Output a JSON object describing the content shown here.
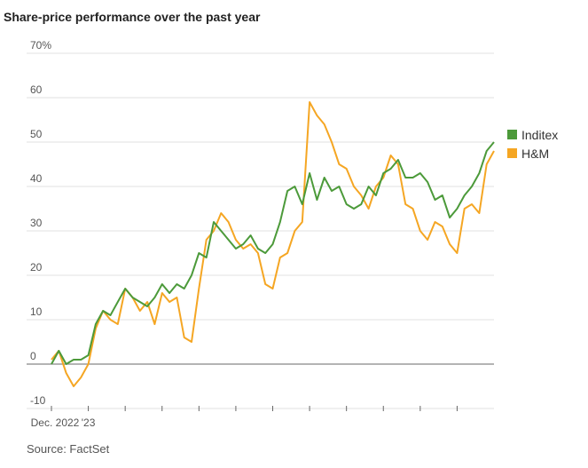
{
  "chart_data": {
    "type": "line",
    "title": "Share-price performance over the past year",
    "source": "Source: FactSet",
    "x": [
      0,
      0.2,
      0.4,
      0.6,
      0.8,
      1,
      1.2,
      1.4,
      1.6,
      1.8,
      2,
      2.2,
      2.4,
      2.6,
      2.8,
      3,
      3.2,
      3.4,
      3.6,
      3.8,
      4,
      4.2,
      4.4,
      4.6,
      4.8,
      5,
      5.2,
      5.4,
      5.6,
      5.8,
      6,
      6.2,
      6.4,
      6.6,
      6.8,
      7,
      7.2,
      7.4,
      7.6,
      7.8,
      8,
      8.2,
      8.4,
      8.6,
      8.8,
      9,
      9.2,
      9.4,
      9.6,
      9.8,
      10,
      10.2,
      10.4,
      10.6,
      10.8,
      11,
      11.2,
      11.4,
      11.6,
      11.8,
      12
    ],
    "series": [
      {
        "name": "Inditex",
        "color": "#4c9a3a",
        "values": [
          0,
          3,
          0,
          1,
          1,
          2,
          9,
          12,
          11,
          14,
          17,
          15,
          14,
          13,
          15,
          18,
          16,
          18,
          17,
          20,
          25,
          24,
          32,
          30,
          28,
          26,
          27,
          29,
          26,
          25,
          27,
          32,
          39,
          40,
          36,
          43,
          37,
          42,
          39,
          40,
          36,
          35,
          36,
          40,
          38,
          43,
          44,
          46,
          42,
          42,
          43,
          41,
          37,
          38,
          33,
          35,
          38,
          40,
          43,
          48,
          50
        ]
      },
      {
        "name": "H&M",
        "color": "#f5a623",
        "values": [
          1,
          3,
          -2,
          -5,
          -3,
          0,
          8,
          12,
          10,
          9,
          17,
          15,
          12,
          14,
          9,
          16,
          14,
          15,
          6,
          5,
          17,
          28,
          30,
          34,
          32,
          28,
          26,
          27,
          25,
          18,
          17,
          24,
          25,
          30,
          32,
          59,
          56,
          54,
          50,
          45,
          44,
          40,
          38,
          35,
          40,
          42,
          47,
          45,
          36,
          35,
          30,
          28,
          32,
          31,
          27,
          25,
          35,
          36,
          34,
          45,
          48
        ]
      }
    ],
    "xlim": [
      0,
      12
    ],
    "xticks": [
      0,
      1,
      2,
      3,
      4,
      5,
      6,
      7,
      8,
      9,
      10,
      11
    ],
    "xtick_labels": [
      "Dec. 2022",
      "'23",
      null,
      null,
      null,
      null,
      null,
      null,
      null,
      null,
      null,
      null
    ],
    "ylim": [
      -10,
      70
    ],
    "yticks": [
      -10,
      0,
      10,
      20,
      30,
      40,
      50,
      60,
      {
        "value": 70,
        "label": "70%"
      }
    ],
    "zero_line": 0,
    "grid": true
  }
}
